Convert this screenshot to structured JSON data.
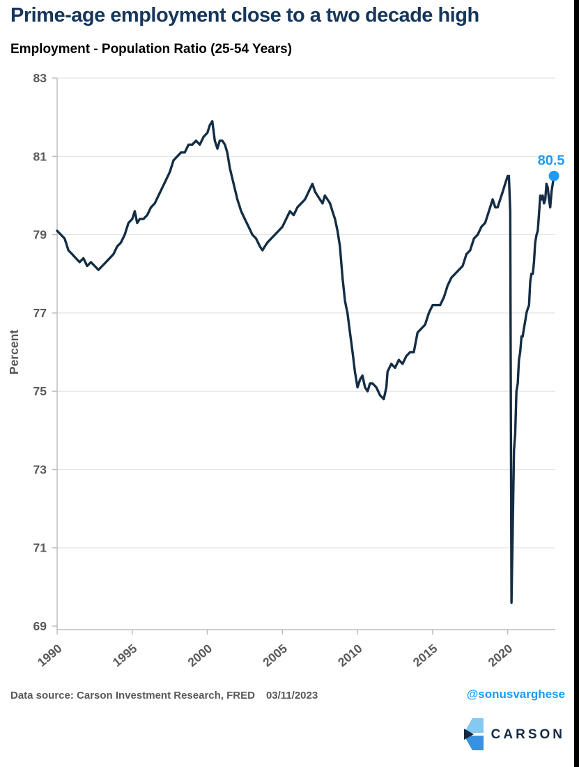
{
  "header": {
    "title": "Prime-age employment close to a two decade high",
    "subtitle": "Employment - Population Ratio (25-54 Years)"
  },
  "footer": {
    "source": "Data source: Carson Investment Research, FRED",
    "date": "03/11/2023",
    "handle": "@sonusvarghese",
    "logo_text": "CARSON"
  },
  "colors": {
    "title": "#16365A",
    "line": "#132D44",
    "accent": "#1D9BF5",
    "grid": "#E4E4E4",
    "axis": "#BDBDBD",
    "tick_text": "#595959",
    "logo_light_blue": "#85C8F0",
    "logo_mid_blue": "#3A91E0",
    "logo_navy": "#152A42"
  },
  "chart_data": {
    "type": "line",
    "title": "Employment - Population Ratio (25-54 Years)",
    "xlabel": "",
    "ylabel": "Percent",
    "xlim": [
      1990,
      2023.17
    ],
    "ylim": [
      69,
      83
    ],
    "xticks": [
      1990,
      1995,
      2000,
      2005,
      2010,
      2015,
      2020
    ],
    "yticks": [
      69,
      71,
      73,
      75,
      77,
      79,
      81,
      83
    ],
    "grid": true,
    "legend": false,
    "annotation": {
      "x": 2023.08,
      "y": 80.5,
      "label": "80.5"
    },
    "series": [
      {
        "name": "Employment-Population Ratio 25-54",
        "x": [
          1990.0,
          1990.25,
          1990.5,
          1990.75,
          1991.0,
          1991.25,
          1991.5,
          1991.75,
          1992.0,
          1992.25,
          1992.5,
          1992.75,
          1993.0,
          1993.25,
          1993.5,
          1993.75,
          1994.0,
          1994.25,
          1994.5,
          1994.75,
          1995.0,
          1995.17,
          1995.33,
          1995.5,
          1995.75,
          1996.0,
          1996.25,
          1996.5,
          1996.75,
          1997.0,
          1997.25,
          1997.5,
          1997.75,
          1998.0,
          1998.25,
          1998.5,
          1998.75,
          1999.0,
          1999.25,
          1999.5,
          1999.75,
          2000.0,
          2000.17,
          2000.33,
          2000.5,
          2000.67,
          2000.83,
          2001.0,
          2001.17,
          2001.33,
          2001.5,
          2001.75,
          2002.0,
          2002.25,
          2002.5,
          2002.75,
          2003.0,
          2003.25,
          2003.5,
          2003.67,
          2003.83,
          2004.0,
          2004.25,
          2004.5,
          2004.75,
          2005.0,
          2005.25,
          2005.5,
          2005.75,
          2006.0,
          2006.25,
          2006.5,
          2006.75,
          2007.0,
          2007.17,
          2007.33,
          2007.5,
          2007.67,
          2007.83,
          2008.0,
          2008.17,
          2008.33,
          2008.5,
          2008.67,
          2008.83,
          2009.0,
          2009.17,
          2009.33,
          2009.5,
          2009.67,
          2009.83,
          2010.0,
          2010.17,
          2010.33,
          2010.5,
          2010.67,
          2010.83,
          2011.0,
          2011.25,
          2011.5,
          2011.75,
          2011.92,
          2012.0,
          2012.25,
          2012.5,
          2012.75,
          2013.0,
          2013.25,
          2013.5,
          2013.75,
          2014.0,
          2014.25,
          2014.5,
          2014.75,
          2015.0,
          2015.25,
          2015.5,
          2015.75,
          2016.0,
          2016.25,
          2016.5,
          2016.75,
          2017.0,
          2017.25,
          2017.5,
          2017.75,
          2018.0,
          2018.25,
          2018.5,
          2018.75,
          2019.0,
          2019.17,
          2019.33,
          2019.5,
          2019.67,
          2019.83,
          2020.0,
          2020.08,
          2020.17,
          2020.25,
          2020.33,
          2020.42,
          2020.5,
          2020.58,
          2020.67,
          2020.75,
          2020.83,
          2020.92,
          2021.0,
          2021.08,
          2021.17,
          2021.25,
          2021.33,
          2021.42,
          2021.5,
          2021.58,
          2021.67,
          2021.75,
          2021.83,
          2021.92,
          2022.0,
          2022.08,
          2022.17,
          2022.25,
          2022.33,
          2022.42,
          2022.5,
          2022.58,
          2022.67,
          2022.75,
          2022.83,
          2022.92,
          2023.0,
          2023.08
        ],
        "y": [
          79.1,
          79.0,
          78.9,
          78.6,
          78.5,
          78.4,
          78.3,
          78.4,
          78.2,
          78.3,
          78.2,
          78.1,
          78.2,
          78.3,
          78.4,
          78.5,
          78.7,
          78.8,
          79.0,
          79.3,
          79.4,
          79.6,
          79.3,
          79.4,
          79.4,
          79.5,
          79.7,
          79.8,
          80.0,
          80.2,
          80.4,
          80.6,
          80.9,
          81.0,
          81.1,
          81.1,
          81.3,
          81.3,
          81.4,
          81.3,
          81.5,
          81.6,
          81.8,
          81.9,
          81.4,
          81.2,
          81.4,
          81.4,
          81.3,
          81.1,
          80.7,
          80.3,
          79.9,
          79.6,
          79.4,
          79.2,
          79.0,
          78.9,
          78.7,
          78.6,
          78.7,
          78.8,
          78.9,
          79.0,
          79.1,
          79.2,
          79.4,
          79.6,
          79.5,
          79.7,
          79.8,
          79.9,
          80.1,
          80.3,
          80.1,
          80.0,
          79.9,
          79.8,
          80.0,
          79.9,
          79.8,
          79.6,
          79.4,
          79.1,
          78.7,
          77.9,
          77.3,
          77.0,
          76.5,
          76.0,
          75.5,
          75.1,
          75.3,
          75.4,
          75.1,
          75.0,
          75.2,
          75.2,
          75.1,
          74.9,
          74.8,
          75.1,
          75.5,
          75.7,
          75.6,
          75.8,
          75.7,
          75.9,
          76.0,
          76.0,
          76.5,
          76.6,
          76.7,
          77.0,
          77.2,
          77.2,
          77.2,
          77.4,
          77.7,
          77.9,
          78.0,
          78.1,
          78.2,
          78.5,
          78.6,
          78.9,
          79.0,
          79.2,
          79.3,
          79.6,
          79.9,
          79.7,
          79.7,
          79.9,
          80.1,
          80.3,
          80.5,
          80.5,
          79.6,
          69.6,
          71.4,
          73.5,
          73.9,
          75.0,
          75.2,
          75.8,
          76.0,
          76.4,
          76.4,
          76.6,
          76.8,
          77.0,
          77.1,
          77.2,
          77.8,
          78.0,
          78.0,
          78.3,
          78.8,
          79.0,
          79.1,
          79.5,
          80.0,
          79.9,
          80.0,
          79.8,
          79.9,
          80.3,
          80.2,
          79.9,
          79.7,
          80.1,
          80.3,
          80.5
        ]
      }
    ]
  }
}
